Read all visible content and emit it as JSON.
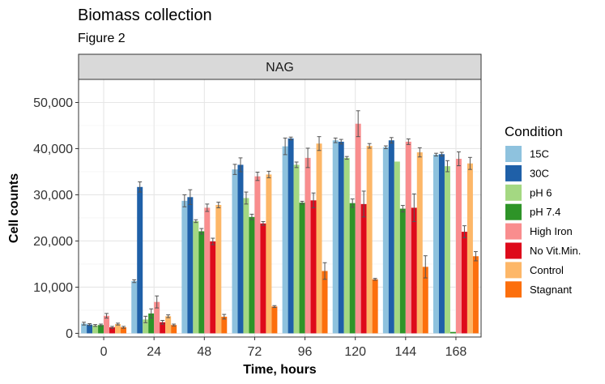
{
  "chart_data": {
    "type": "bar",
    "title": "Biomass collection",
    "subtitle": "Figure 2",
    "facet_label": "NAG",
    "xlabel": "Time, hours",
    "ylabel": "Cell counts",
    "ylim": [
      -800,
      55000
    ],
    "yticks": [
      0,
      10000,
      20000,
      30000,
      40000,
      50000
    ],
    "ytick_labels": [
      "0",
      "10,000",
      "20,000",
      "30,000",
      "40,000",
      "50,000"
    ],
    "categories": [
      "0",
      "24",
      "48",
      "72",
      "96",
      "120",
      "144",
      "168"
    ],
    "grid": true,
    "legend_position": "right",
    "legend_title": "Condition",
    "series": [
      {
        "name": "15C",
        "color": "#8EC2DE",
        "values": [
          2100,
          11300,
          28700,
          35500,
          40500,
          41800,
          40300,
          38700
        ],
        "errors": [
          300,
          300,
          1300,
          1100,
          1800,
          500,
          300,
          300
        ]
      },
      {
        "name": "30C",
        "color": "#1F60A8",
        "values": [
          1900,
          31700,
          29500,
          36500,
          42200,
          41500,
          41800,
          38800
        ],
        "errors": [
          200,
          1100,
          1600,
          1500,
          300,
          500,
          600,
          400
        ]
      },
      {
        "name": "pH 6",
        "color": "#A4D882",
        "values": [
          1700,
          3000,
          24300,
          29300,
          36500,
          38000,
          37200,
          36200
        ],
        "errors": [
          200,
          700,
          300,
          1300,
          600,
          300,
          0,
          1200
        ]
      },
      {
        "name": "pH 7.4",
        "color": "#2E9428",
        "values": [
          1800,
          4300,
          22100,
          25200,
          28300,
          28200,
          27000,
          300
        ],
        "errors": [
          200,
          1000,
          600,
          600,
          300,
          900,
          700,
          0
        ]
      },
      {
        "name": "High Iron",
        "color": "#F98D8E",
        "values": [
          3800,
          6800,
          27200,
          34000,
          38000,
          45400,
          41500,
          37800
        ],
        "errors": [
          500,
          1300,
          800,
          900,
          2100,
          2800,
          600,
          1500
        ]
      },
      {
        "name": "No Vit.Min.",
        "color": "#DE0A1B",
        "values": [
          1300,
          2400,
          19900,
          23800,
          28800,
          28000,
          27200,
          22000
        ],
        "errors": [
          200,
          400,
          700,
          400,
          1600,
          2800,
          3000,
          1300
        ]
      },
      {
        "name": "Control",
        "color": "#FDB768",
        "values": [
          2000,
          3700,
          27800,
          34400,
          41100,
          40600,
          39200,
          36800
        ],
        "errors": [
          200,
          300,
          600,
          700,
          1500,
          500,
          1000,
          1300
        ]
      },
      {
        "name": "Stagnant",
        "color": "#FC6F0D",
        "values": [
          1300,
          1800,
          3600,
          5800,
          13500,
          11700,
          14400,
          16700
        ],
        "errors": [
          200,
          200,
          500,
          200,
          1800,
          200,
          2400,
          1000
        ]
      }
    ]
  }
}
